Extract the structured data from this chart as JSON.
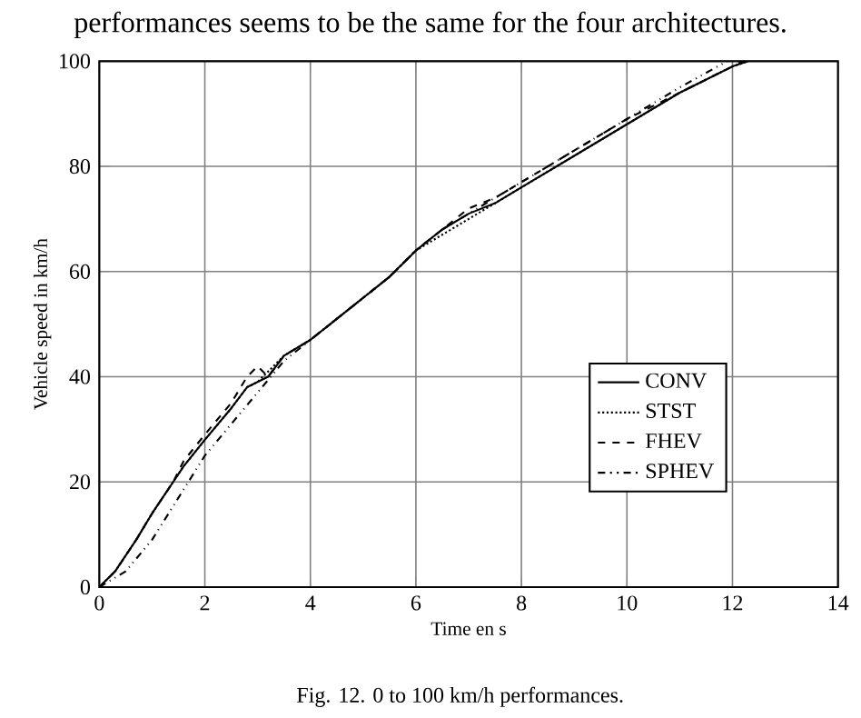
{
  "chart_data": {
    "type": "line",
    "xlabel": "Time en s",
    "ylabel": "Vehicle speed in km/h",
    "annotations": [
      "performances seems to be the same for the four architectures.",
      "Fig. 12. 0 to 100 km/h performances."
    ],
    "xlim": [
      0,
      14
    ],
    "ylim": [
      0,
      100
    ],
    "xticks": [
      0,
      2,
      4,
      6,
      8,
      10,
      12,
      14
    ],
    "yticks": [
      0,
      20,
      40,
      60,
      80,
      100
    ],
    "grid": true,
    "legend": "bottom right",
    "marker": "none",
    "series": [
      {
        "name": "CONV",
        "color": "#000000",
        "line_style": "solid",
        "x": [
          0,
          0.3,
          0.7,
          1,
          1.4,
          1.6,
          2,
          2.5,
          2.8,
          3.0,
          3.2,
          3.5,
          4,
          4.5,
          5,
          5.5,
          6,
          6.5,
          7,
          7.5,
          8,
          8.5,
          9,
          10,
          11,
          12,
          12.3
        ],
        "values": [
          0,
          3,
          9,
          14,
          20,
          23,
          28,
          34,
          38,
          39,
          40,
          44,
          47,
          51,
          55,
          59,
          64,
          68,
          71,
          73,
          76,
          79,
          82,
          88,
          94,
          99,
          100
        ]
      },
      {
        "name": "STST",
        "color": "#000000",
        "line_style": "dotted",
        "x": [
          0,
          0.3,
          0.7,
          1,
          1.4,
          1.6,
          2,
          2.5,
          2.8,
          3.0,
          3.2,
          3.5,
          4,
          4.5,
          5,
          5.5,
          6,
          6.5,
          7,
          7.5,
          8,
          8.5,
          9,
          10,
          11,
          12,
          12.3
        ],
        "values": [
          0,
          3,
          9,
          14,
          20,
          23,
          28,
          34,
          38,
          39,
          41,
          44,
          47,
          51,
          55,
          59,
          64,
          67,
          70,
          73,
          76,
          79,
          82,
          88,
          94,
          99,
          100
        ]
      },
      {
        "name": "FHEV",
        "color": "#000000",
        "line_style": "dashed",
        "x": [
          0,
          0.3,
          0.7,
          1,
          1.4,
          1.6,
          2,
          2.5,
          2.8,
          3.0,
          3.2,
          3.5,
          4,
          4.5,
          5,
          5.5,
          6,
          6.5,
          7,
          7.5,
          8,
          8.5,
          9,
          10,
          11,
          12,
          12.2
        ],
        "values": [
          0,
          3,
          9,
          14,
          20,
          24,
          29,
          35,
          40,
          42,
          40,
          44,
          47,
          51,
          55,
          59,
          64,
          68,
          72,
          74,
          77,
          80,
          83,
          89,
          94,
          99,
          100
        ]
      },
      {
        "name": "SPHEV",
        "color": "#000000",
        "line_style": "dashdot",
        "x": [
          0,
          0.5,
          1,
          1.5,
          2,
          2.5,
          3,
          3.5,
          4,
          4.5,
          5,
          5.5,
          6,
          6.5,
          7,
          7.5,
          8,
          8.5,
          9,
          10,
          11,
          11.9
        ],
        "values": [
          0,
          3,
          9,
          17,
          25,
          31,
          37,
          43,
          47,
          51,
          55,
          59,
          64,
          68,
          71,
          74,
          77,
          80,
          83,
          89,
          95,
          100
        ]
      }
    ]
  }
}
